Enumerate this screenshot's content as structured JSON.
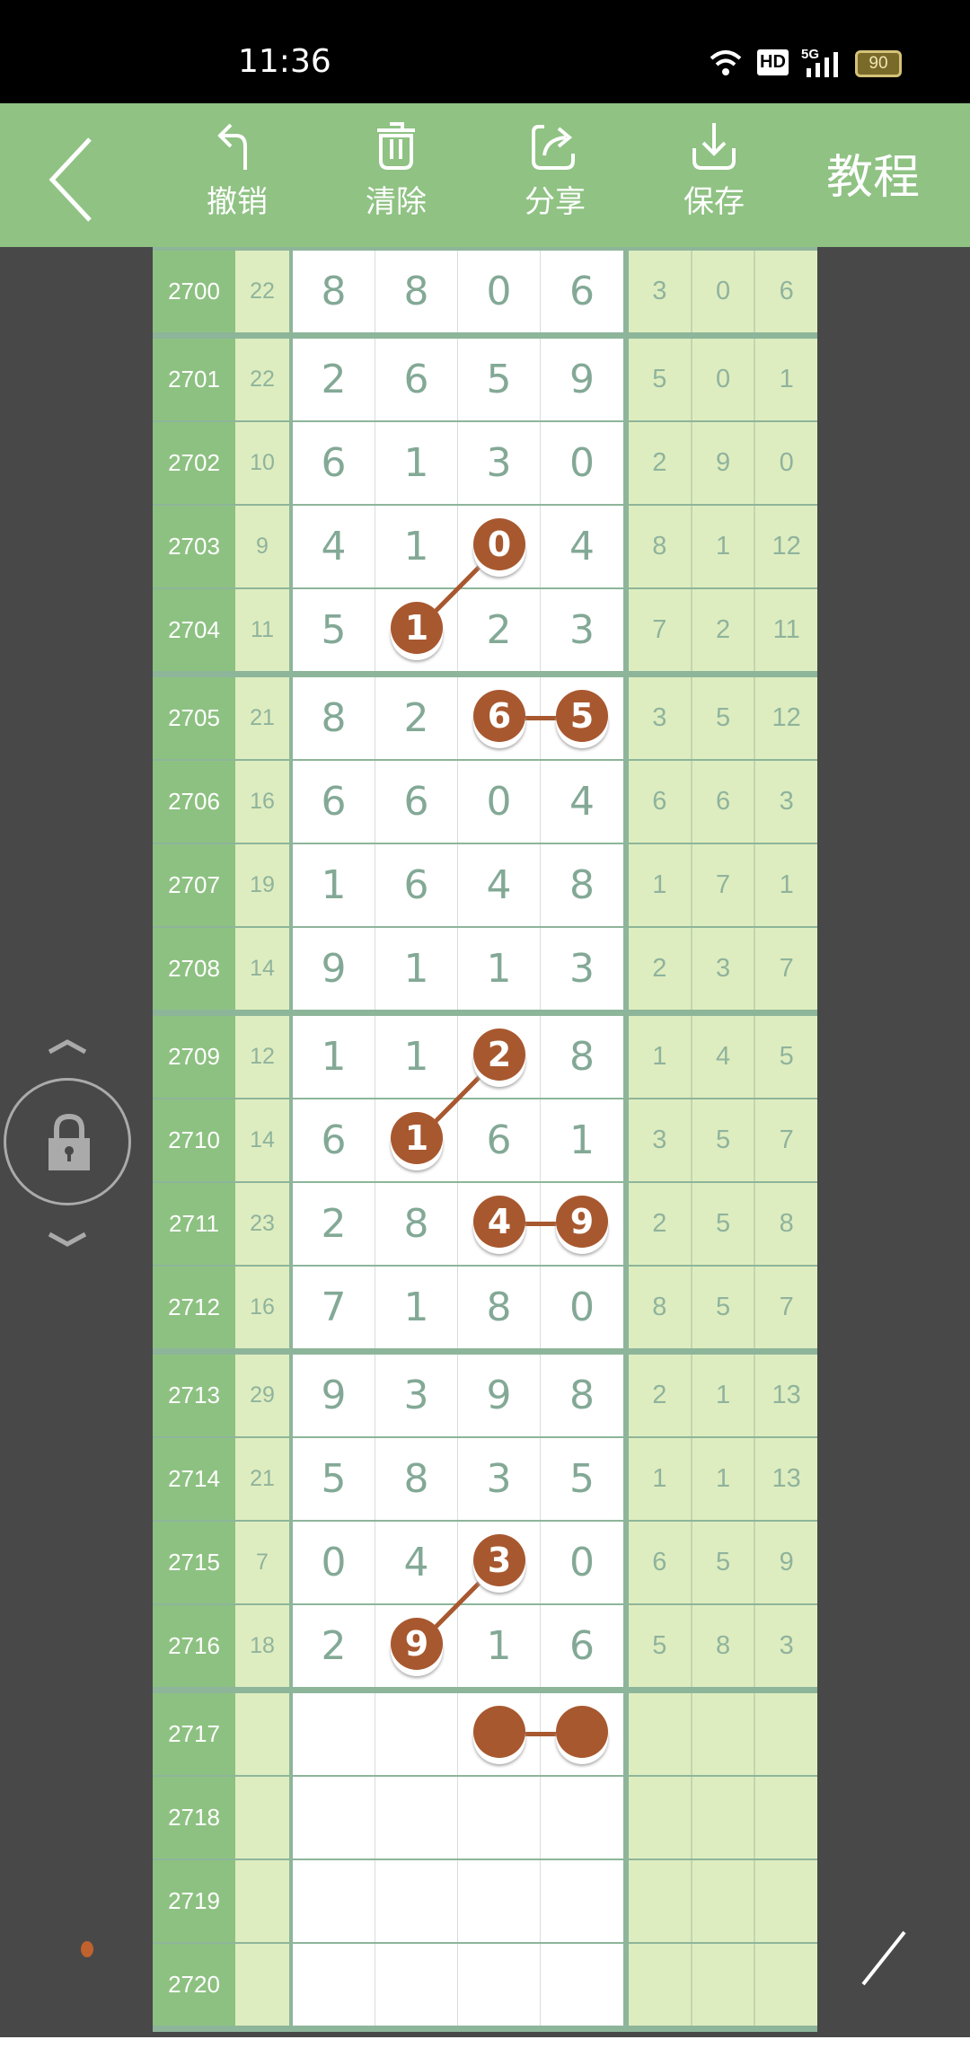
{
  "status_bar": {
    "time": "11:36",
    "battery": "90",
    "network": "5G",
    "hd_badge": "HD"
  },
  "toolbar": {
    "back_icon": "chevron-left-icon",
    "items": [
      {
        "label": "撤销",
        "icon": "undo-icon"
      },
      {
        "label": "清除",
        "icon": "trash-icon"
      },
      {
        "label": "分享",
        "icon": "share-icon"
      },
      {
        "label": "保存",
        "icon": "download-icon"
      }
    ],
    "tutorial": "教程"
  },
  "colors": {
    "toolbar": "#8fc283",
    "period_col": "#8dc181",
    "light_col": "#deedbf",
    "mark": "#a8582f",
    "background": "#484848"
  },
  "rows": [
    {
      "period": "2700",
      "sum": "22",
      "digits": [
        "8",
        "8",
        "0",
        "6"
      ],
      "extra": [
        "3",
        "0",
        "6"
      ]
    },
    {
      "period": "2701",
      "sum": "22",
      "digits": [
        "2",
        "6",
        "5",
        "9"
      ],
      "extra": [
        "5",
        "0",
        "1"
      ]
    },
    {
      "period": "2702",
      "sum": "10",
      "digits": [
        "6",
        "1",
        "3",
        "0"
      ],
      "extra": [
        "2",
        "9",
        "0"
      ]
    },
    {
      "period": "2703",
      "sum": "9",
      "digits": [
        "4",
        "1",
        "0",
        "4"
      ],
      "extra": [
        "8",
        "1",
        "12"
      ]
    },
    {
      "period": "2704",
      "sum": "11",
      "digits": [
        "5",
        "1",
        "2",
        "3"
      ],
      "extra": [
        "7",
        "2",
        "11"
      ]
    },
    {
      "period": "2705",
      "sum": "21",
      "digits": [
        "8",
        "2",
        "6",
        "5"
      ],
      "extra": [
        "3",
        "5",
        "12"
      ]
    },
    {
      "period": "2706",
      "sum": "16",
      "digits": [
        "6",
        "6",
        "0",
        "4"
      ],
      "extra": [
        "6",
        "6",
        "3"
      ]
    },
    {
      "period": "2707",
      "sum": "19",
      "digits": [
        "1",
        "6",
        "4",
        "8"
      ],
      "extra": [
        "1",
        "7",
        "1"
      ]
    },
    {
      "period": "2708",
      "sum": "14",
      "digits": [
        "9",
        "1",
        "1",
        "3"
      ],
      "extra": [
        "2",
        "3",
        "7"
      ]
    },
    {
      "period": "2709",
      "sum": "12",
      "digits": [
        "1",
        "1",
        "2",
        "8"
      ],
      "extra": [
        "1",
        "4",
        "5"
      ]
    },
    {
      "period": "2710",
      "sum": "14",
      "digits": [
        "6",
        "1",
        "6",
        "1"
      ],
      "extra": [
        "3",
        "5",
        "7"
      ]
    },
    {
      "period": "2711",
      "sum": "23",
      "digits": [
        "2",
        "8",
        "4",
        "9"
      ],
      "extra": [
        "2",
        "5",
        "8"
      ]
    },
    {
      "period": "2712",
      "sum": "16",
      "digits": [
        "7",
        "1",
        "8",
        "0"
      ],
      "extra": [
        "8",
        "5",
        "7"
      ]
    },
    {
      "period": "2713",
      "sum": "29",
      "digits": [
        "9",
        "3",
        "9",
        "8"
      ],
      "extra": [
        "2",
        "1",
        "13"
      ]
    },
    {
      "period": "2714",
      "sum": "21",
      "digits": [
        "5",
        "8",
        "3",
        "5"
      ],
      "extra": [
        "1",
        "1",
        "13"
      ]
    },
    {
      "period": "2715",
      "sum": "7",
      "digits": [
        "0",
        "4",
        "3",
        "0"
      ],
      "extra": [
        "6",
        "5",
        "9"
      ]
    },
    {
      "period": "2716",
      "sum": "18",
      "digits": [
        "2",
        "9",
        "1",
        "6"
      ],
      "extra": [
        "5",
        "8",
        "3"
      ]
    },
    {
      "period": "2717",
      "sum": "",
      "digits": [
        "",
        "",
        "",
        ""
      ],
      "extra": [
        "",
        "",
        ""
      ]
    },
    {
      "period": "2718",
      "sum": "",
      "digits": [
        "",
        "",
        "",
        ""
      ],
      "extra": [
        "",
        "",
        ""
      ]
    },
    {
      "period": "2719",
      "sum": "",
      "digits": [
        "",
        "",
        "",
        ""
      ],
      "extra": [
        "",
        "",
        ""
      ]
    },
    {
      "period": "2720",
      "sum": "",
      "digits": [
        "",
        "",
        "",
        ""
      ],
      "extra": [
        "",
        "",
        ""
      ]
    }
  ],
  "marks": [
    {
      "row": 3,
      "col": 2,
      "value": "0"
    },
    {
      "row": 4,
      "col": 1,
      "value": "1"
    },
    {
      "row": 5,
      "col": 2,
      "value": "6"
    },
    {
      "row": 5,
      "col": 3,
      "value": "5"
    },
    {
      "row": 9,
      "col": 2,
      "value": "2"
    },
    {
      "row": 10,
      "col": 1,
      "value": "1"
    },
    {
      "row": 11,
      "col": 2,
      "value": "4"
    },
    {
      "row": 11,
      "col": 3,
      "value": "9"
    },
    {
      "row": 15,
      "col": 2,
      "value": "3"
    },
    {
      "row": 16,
      "col": 1,
      "value": "9"
    },
    {
      "row": 17,
      "col": 2,
      "value": ""
    },
    {
      "row": 17,
      "col": 3,
      "value": ""
    }
  ],
  "links": [
    [
      0,
      1
    ],
    [
      2,
      3
    ],
    [
      4,
      5
    ],
    [
      6,
      7
    ],
    [
      8,
      9
    ],
    [
      10,
      11
    ]
  ],
  "side_controls": {
    "lock_icon": "lock-icon",
    "up_icon": "chevron-up-icon",
    "down_icon": "chevron-down-icon",
    "pen_icon": "pen-icon",
    "dot_color": "#c0622d"
  }
}
